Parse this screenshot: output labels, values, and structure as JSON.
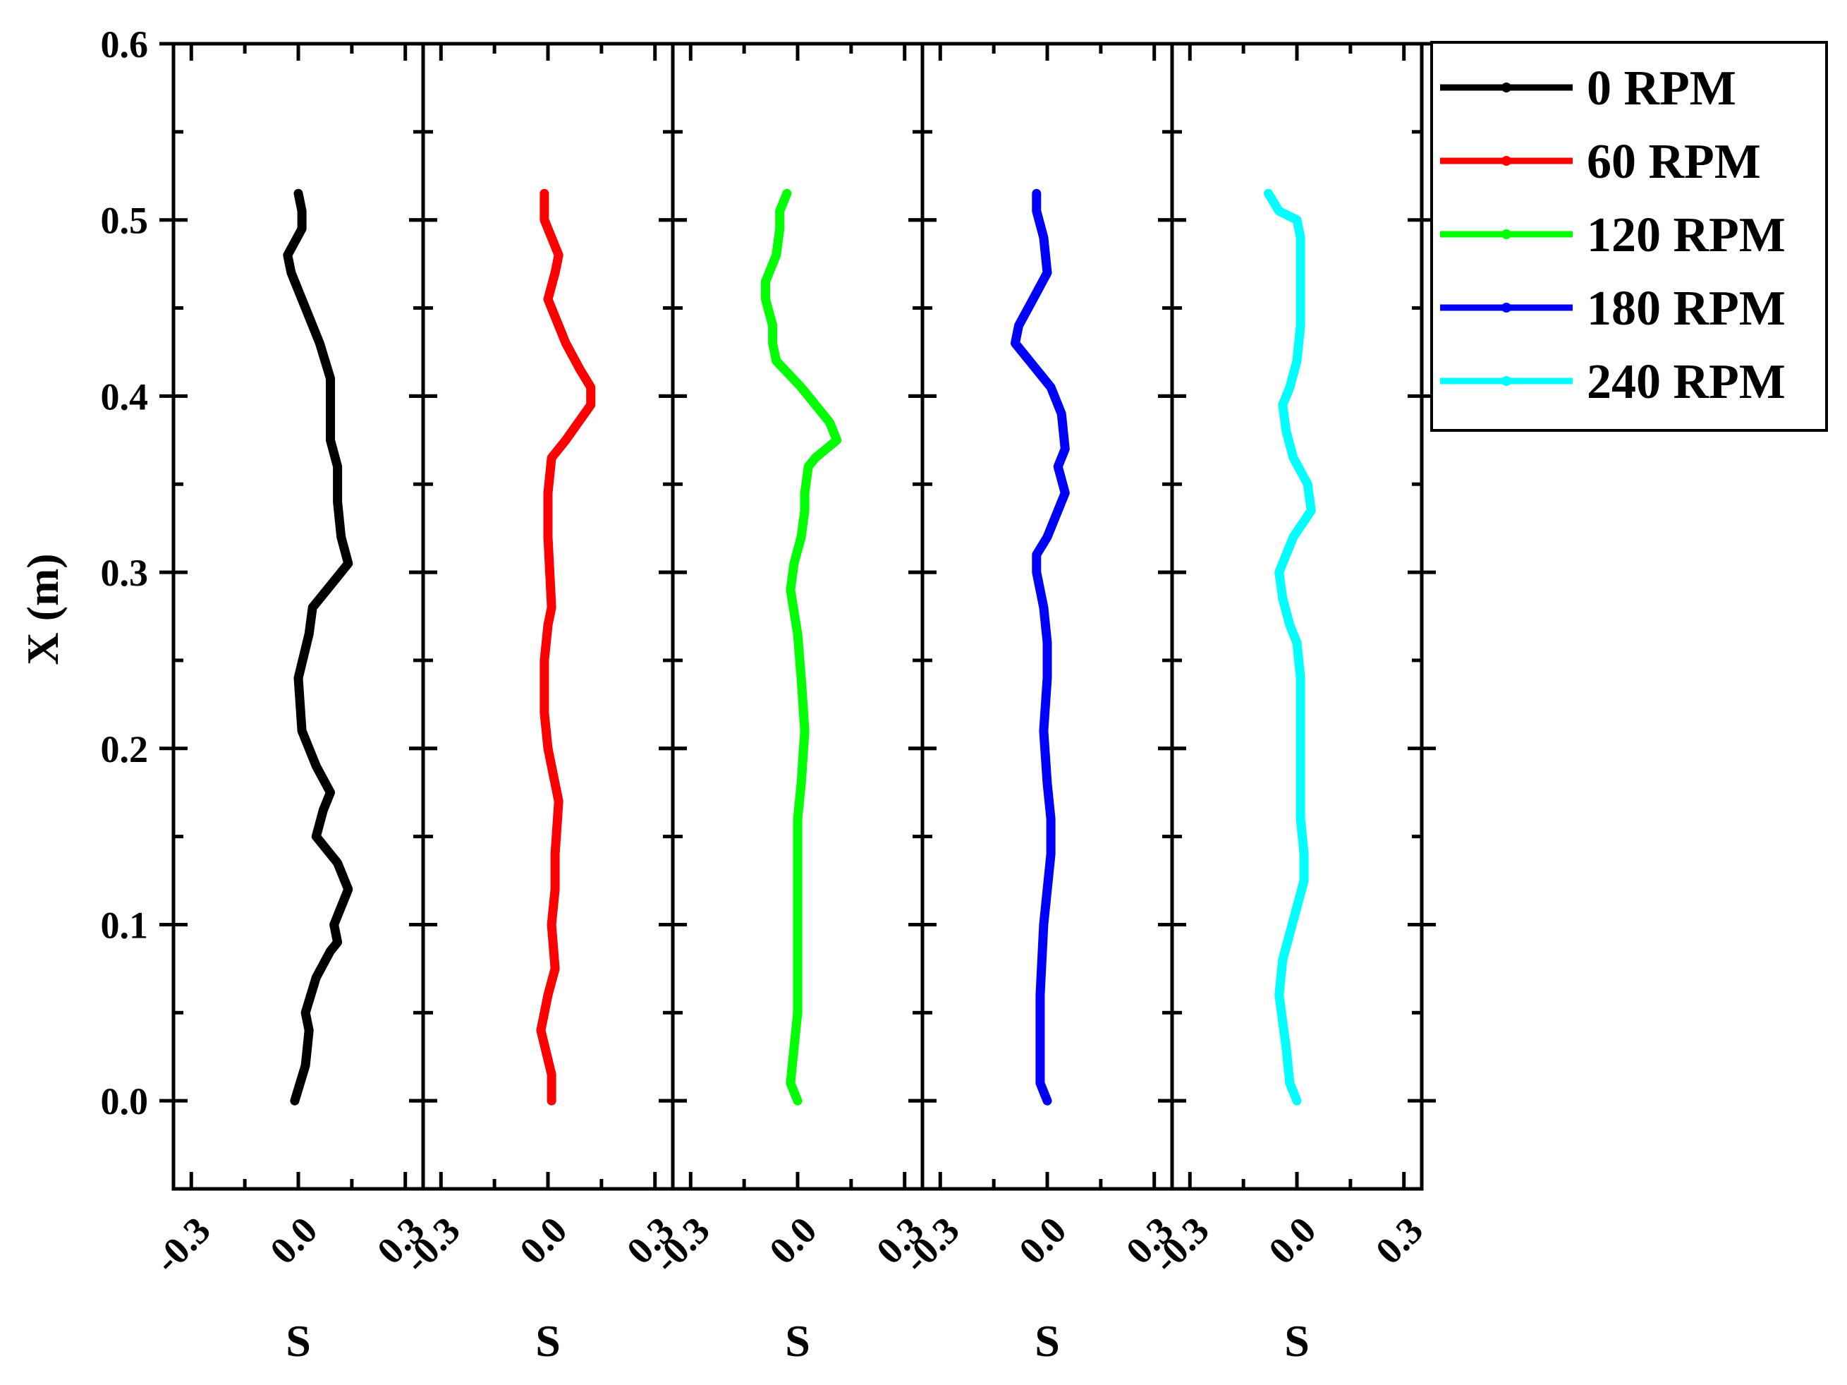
{
  "chart_data": {
    "type": "line",
    "layout": "five vertical panels sharing the y axis",
    "ylabel": "X (m)",
    "xlabel": "S",
    "ylim": [
      -0.05,
      0.6
    ],
    "yticks": [
      0.0,
      0.1,
      0.2,
      0.3,
      0.4,
      0.5,
      0.6
    ],
    "ytick_labels": [
      "0.0",
      "0.1",
      "0.2",
      "0.3",
      "0.4",
      "0.5",
      "0.6"
    ],
    "xlim": [
      -0.35,
      0.35
    ],
    "xticks": [
      -0.3,
      0.0,
      0.3
    ],
    "xtick_labels": [
      "-0.3",
      "0.0",
      "0.3"
    ],
    "grid": false,
    "legend_position": "outside-right-top",
    "series": [
      {
        "name": "0 RPM",
        "color": "#000000",
        "points": [
          [
            -0.01,
            0.0
          ],
          [
            0.02,
            0.02
          ],
          [
            0.03,
            0.04
          ],
          [
            0.02,
            0.05
          ],
          [
            0.05,
            0.07
          ],
          [
            0.09,
            0.085
          ],
          [
            0.11,
            0.09
          ],
          [
            0.1,
            0.1
          ],
          [
            0.14,
            0.12
          ],
          [
            0.11,
            0.135
          ],
          [
            0.05,
            0.15
          ],
          [
            0.07,
            0.165
          ],
          [
            0.09,
            0.175
          ],
          [
            0.05,
            0.19
          ],
          [
            0.01,
            0.21
          ],
          [
            0.0,
            0.24
          ],
          [
            0.03,
            0.265
          ],
          [
            0.04,
            0.28
          ],
          [
            0.1,
            0.295
          ],
          [
            0.14,
            0.305
          ],
          [
            0.12,
            0.32
          ],
          [
            0.11,
            0.34
          ],
          [
            0.11,
            0.36
          ],
          [
            0.09,
            0.375
          ],
          [
            0.09,
            0.39
          ],
          [
            0.09,
            0.41
          ],
          [
            0.06,
            0.43
          ],
          [
            0.02,
            0.45
          ],
          [
            -0.02,
            0.47
          ],
          [
            -0.03,
            0.48
          ],
          [
            0.01,
            0.495
          ],
          [
            0.01,
            0.505
          ],
          [
            0.0,
            0.515
          ]
        ]
      },
      {
        "name": "60 RPM",
        "color": "#ff0000",
        "points": [
          [
            0.01,
            0.0
          ],
          [
            0.01,
            0.015
          ],
          [
            -0.02,
            0.04
          ],
          [
            0.0,
            0.06
          ],
          [
            0.02,
            0.075
          ],
          [
            0.01,
            0.1
          ],
          [
            0.02,
            0.12
          ],
          [
            0.02,
            0.14
          ],
          [
            0.03,
            0.17
          ],
          [
            0.02,
            0.18
          ],
          [
            0.0,
            0.2
          ],
          [
            -0.01,
            0.22
          ],
          [
            -0.01,
            0.25
          ],
          [
            0.0,
            0.27
          ],
          [
            0.01,
            0.28
          ],
          [
            0.0,
            0.32
          ],
          [
            0.0,
            0.345
          ],
          [
            0.01,
            0.365
          ],
          [
            0.05,
            0.375
          ],
          [
            0.12,
            0.395
          ],
          [
            0.12,
            0.405
          ],
          [
            0.09,
            0.415
          ],
          [
            0.05,
            0.43
          ],
          [
            0.0,
            0.455
          ],
          [
            0.02,
            0.47
          ],
          [
            0.03,
            0.48
          ],
          [
            0.01,
            0.49
          ],
          [
            -0.01,
            0.5
          ],
          [
            -0.01,
            0.515
          ]
        ]
      },
      {
        "name": "120 RPM",
        "color": "#00ff00",
        "points": [
          [
            0.0,
            0.0
          ],
          [
            -0.02,
            0.01
          ],
          [
            -0.01,
            0.03
          ],
          [
            0.0,
            0.05
          ],
          [
            0.0,
            0.08
          ],
          [
            0.0,
            0.12
          ],
          [
            0.0,
            0.16
          ],
          [
            0.01,
            0.18
          ],
          [
            0.02,
            0.21
          ],
          [
            0.01,
            0.24
          ],
          [
            0.0,
            0.265
          ],
          [
            -0.02,
            0.29
          ],
          [
            -0.01,
            0.305
          ],
          [
            0.01,
            0.32
          ],
          [
            0.02,
            0.335
          ],
          [
            0.02,
            0.345
          ],
          [
            0.03,
            0.36
          ],
          [
            0.05,
            0.365
          ],
          [
            0.11,
            0.375
          ],
          [
            0.09,
            0.385
          ],
          [
            0.05,
            0.395
          ],
          [
            0.01,
            0.405
          ],
          [
            -0.06,
            0.42
          ],
          [
            -0.07,
            0.43
          ],
          [
            -0.07,
            0.44
          ],
          [
            -0.09,
            0.455
          ],
          [
            -0.09,
            0.465
          ],
          [
            -0.06,
            0.48
          ],
          [
            -0.05,
            0.495
          ],
          [
            -0.05,
            0.505
          ],
          [
            -0.03,
            0.515
          ]
        ]
      },
      {
        "name": "180 RPM",
        "color": "#0000ff",
        "points": [
          [
            0.0,
            0.0
          ],
          [
            -0.02,
            0.01
          ],
          [
            -0.02,
            0.03
          ],
          [
            -0.02,
            0.06
          ],
          [
            -0.01,
            0.1
          ],
          [
            0.0,
            0.12
          ],
          [
            0.01,
            0.14
          ],
          [
            0.01,
            0.16
          ],
          [
            0.0,
            0.18
          ],
          [
            -0.01,
            0.21
          ],
          [
            0.0,
            0.24
          ],
          [
            0.0,
            0.26
          ],
          [
            -0.01,
            0.28
          ],
          [
            -0.03,
            0.3
          ],
          [
            -0.03,
            0.31
          ],
          [
            0.0,
            0.32
          ],
          [
            0.05,
            0.345
          ],
          [
            0.03,
            0.36
          ],
          [
            0.05,
            0.37
          ],
          [
            0.04,
            0.39
          ],
          [
            0.01,
            0.405
          ],
          [
            -0.05,
            0.42
          ],
          [
            -0.09,
            0.43
          ],
          [
            -0.08,
            0.44
          ],
          [
            -0.04,
            0.455
          ],
          [
            0.0,
            0.47
          ],
          [
            -0.01,
            0.49
          ],
          [
            -0.03,
            0.505
          ],
          [
            -0.03,
            0.515
          ]
        ]
      },
      {
        "name": "240 RPM",
        "color": "#00ffff",
        "points": [
          [
            0.0,
            0.0
          ],
          [
            -0.02,
            0.01
          ],
          [
            -0.03,
            0.03
          ],
          [
            -0.05,
            0.06
          ],
          [
            -0.04,
            0.08
          ],
          [
            0.0,
            0.11
          ],
          [
            0.02,
            0.125
          ],
          [
            0.02,
            0.14
          ],
          [
            0.01,
            0.16
          ],
          [
            0.01,
            0.2
          ],
          [
            0.01,
            0.24
          ],
          [
            0.0,
            0.26
          ],
          [
            -0.02,
            0.27
          ],
          [
            -0.04,
            0.285
          ],
          [
            -0.05,
            0.3
          ],
          [
            -0.01,
            0.32
          ],
          [
            0.04,
            0.335
          ],
          [
            0.03,
            0.35
          ],
          [
            -0.01,
            0.365
          ],
          [
            -0.03,
            0.38
          ],
          [
            -0.04,
            0.395
          ],
          [
            -0.02,
            0.405
          ],
          [
            0.0,
            0.42
          ],
          [
            0.01,
            0.44
          ],
          [
            0.01,
            0.46
          ],
          [
            0.01,
            0.49
          ],
          [
            0.0,
            0.5
          ],
          [
            -0.05,
            0.505
          ],
          [
            -0.08,
            0.515
          ]
        ]
      }
    ]
  }
}
